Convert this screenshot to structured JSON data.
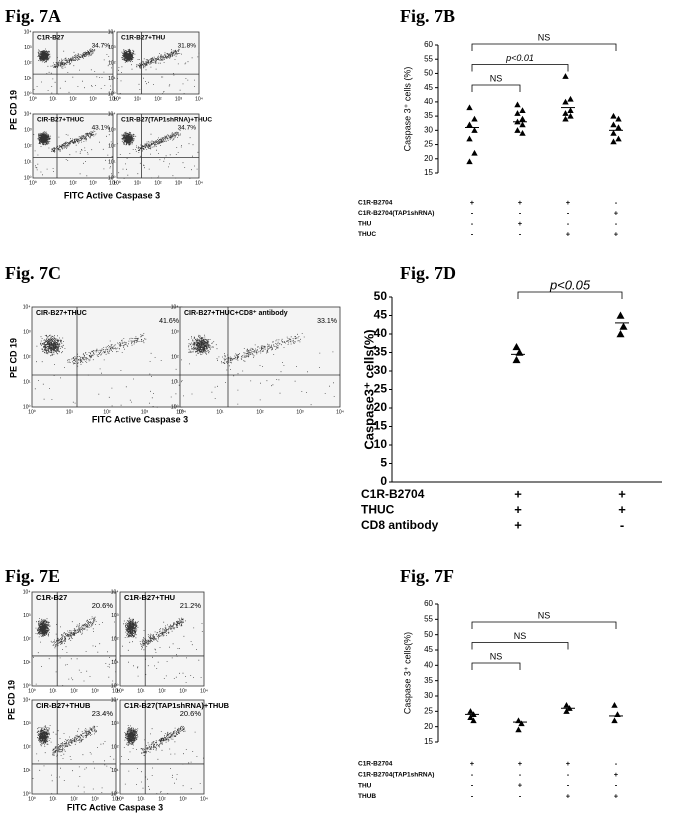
{
  "flow_panels": [
    {
      "title": "Fig. 7A",
      "y_label": "PE CD 19",
      "x_label": "FITC Active Caspase 3",
      "log_ticks": [
        "10⁰",
        "10¹",
        "10²",
        "10³",
        "10⁴"
      ],
      "plots": [
        {
          "label": "C1R-B27",
          "percent": "34.7%"
        },
        {
          "label": "C1R-B27+THU",
          "percent": "31.8%"
        },
        {
          "label": "CIR-B27+THUC",
          "percent": "43.1%"
        },
        {
          "label": "C1R-B27(TAP1shRNA)+THUC",
          "percent": "34.7%"
        }
      ]
    },
    {
      "title": "Fig. 7C",
      "y_label": "PE CD 19",
      "x_label": "FITC Active Caspase 3",
      "log_ticks": [
        "10⁰",
        "10¹",
        "10²",
        "10³",
        "10⁴"
      ],
      "plots": [
        {
          "label": "CIR-B27+THUC",
          "percent": "41.6%"
        },
        {
          "label": "CIR-B27+THUC+CD8⁺ antibody",
          "percent": "33.1%"
        }
      ]
    },
    {
      "title": "Fig. 7E",
      "y_label": "PE CD 19",
      "x_label": "FITC Active Caspase 3",
      "log_ticks": [
        "10⁰",
        "10¹",
        "10²",
        "10³",
        "10⁴"
      ],
      "plots": [
        {
          "label": "C1R-B27",
          "percent": "20.6%"
        },
        {
          "label": "C1R-B27+THU",
          "percent": "21.2%"
        },
        {
          "label": "CIR-B27+THUB",
          "percent": "23.4%"
        },
        {
          "label": "C1R-B27(TAP1shRNA)+THUB",
          "percent": "20.6%"
        }
      ]
    }
  ],
  "chart_data": [
    {
      "type": "dot",
      "title": "Fig. 7B",
      "y_label": "Caspase 3⁺ cells (%)",
      "categories": [
        null,
        null,
        null,
        null
      ],
      "groups": [
        [
          38,
          34,
          32,
          30,
          27,
          22,
          19
        ],
        [
          39,
          37,
          36,
          34,
          33,
          32,
          30,
          29
        ],
        [
          49,
          41,
          40,
          37,
          36,
          35,
          34
        ],
        [
          35,
          34,
          32,
          31,
          29,
          27,
          26
        ]
      ],
      "means": [
        31,
        33,
        38,
        30
      ],
      "ylim": [
        15,
        60
      ],
      "yticks": [
        15,
        20,
        25,
        30,
        35,
        40,
        45,
        50,
        55,
        60
      ],
      "color": "#000000",
      "brackets": [
        {
          "from": 0,
          "to": 3,
          "label": "NS"
        },
        {
          "from": 0,
          "to": 2,
          "label": "p<0.01"
        },
        {
          "from": 0,
          "to": 1,
          "label": "NS"
        }
      ],
      "condition_table": [
        {
          "label": "C1R-B2704",
          "signs": [
            "+",
            "+",
            "+",
            "-"
          ]
        },
        {
          "label": "C1R-B2704(TAP1shRNA)",
          "signs": [
            "-",
            "-",
            "-",
            "+"
          ]
        },
        {
          "label": "THU",
          "signs": [
            "-",
            "+",
            "-",
            "-"
          ]
        },
        {
          "label": "THUC",
          "signs": [
            "-",
            "-",
            "+",
            "+"
          ]
        }
      ]
    },
    {
      "type": "dot",
      "title": "Fig. 7D",
      "y_label": "Caspase3⁺ cells(%)",
      "categories": [
        null,
        null
      ],
      "groups": [
        [
          36.5,
          35,
          33
        ],
        [
          45,
          42,
          40
        ]
      ],
      "means": [
        34.5,
        43
      ],
      "ylim": [
        0,
        50
      ],
      "yticks": [
        0,
        5,
        10,
        15,
        20,
        25,
        30,
        35,
        40,
        45,
        50
      ],
      "color": "#000000",
      "brackets": [
        {
          "from": 0,
          "to": 1,
          "label": "p<0.05"
        }
      ],
      "condition_table": [
        {
          "label": "C1R-B2704",
          "signs": [
            "+",
            "+"
          ]
        },
        {
          "label": "THUC",
          "signs": [
            "+",
            "+"
          ]
        },
        {
          "label": "CD8 antibody",
          "signs": [
            "+",
            "-"
          ]
        }
      ]
    },
    {
      "type": "dot",
      "title": "Fig. 7F",
      "y_label": "Caspase 3⁺ cells(%)",
      "categories": [
        null,
        null,
        null,
        null
      ],
      "groups": [
        [
          25,
          24,
          23,
          22
        ],
        [
          22,
          21,
          19
        ],
        [
          27,
          26,
          25
        ],
        [
          27,
          24,
          22
        ]
      ],
      "means": [
        24,
        21.5,
        26,
        23.5
      ],
      "ylim": [
        15,
        60
      ],
      "yticks": [
        15,
        20,
        25,
        30,
        35,
        40,
        45,
        50,
        55,
        60
      ],
      "color": "#000000",
      "brackets": [
        {
          "from": 0,
          "to": 3,
          "label": "NS"
        },
        {
          "from": 0,
          "to": 2,
          "label": "NS"
        },
        {
          "from": 0,
          "to": 1,
          "label": "NS"
        }
      ],
      "condition_table": [
        {
          "label": "C1R-B2704",
          "signs": [
            "+",
            "+",
            "+",
            "-"
          ]
        },
        {
          "label": "C1R-B2704(TAP1shRNA)",
          "signs": [
            "-",
            "-",
            "-",
            "+"
          ]
        },
        {
          "label": "THU",
          "signs": [
            "-",
            "+",
            "-",
            "-"
          ]
        },
        {
          "label": "THUB",
          "signs": [
            "-",
            "-",
            "+",
            "+"
          ]
        }
      ]
    }
  ]
}
